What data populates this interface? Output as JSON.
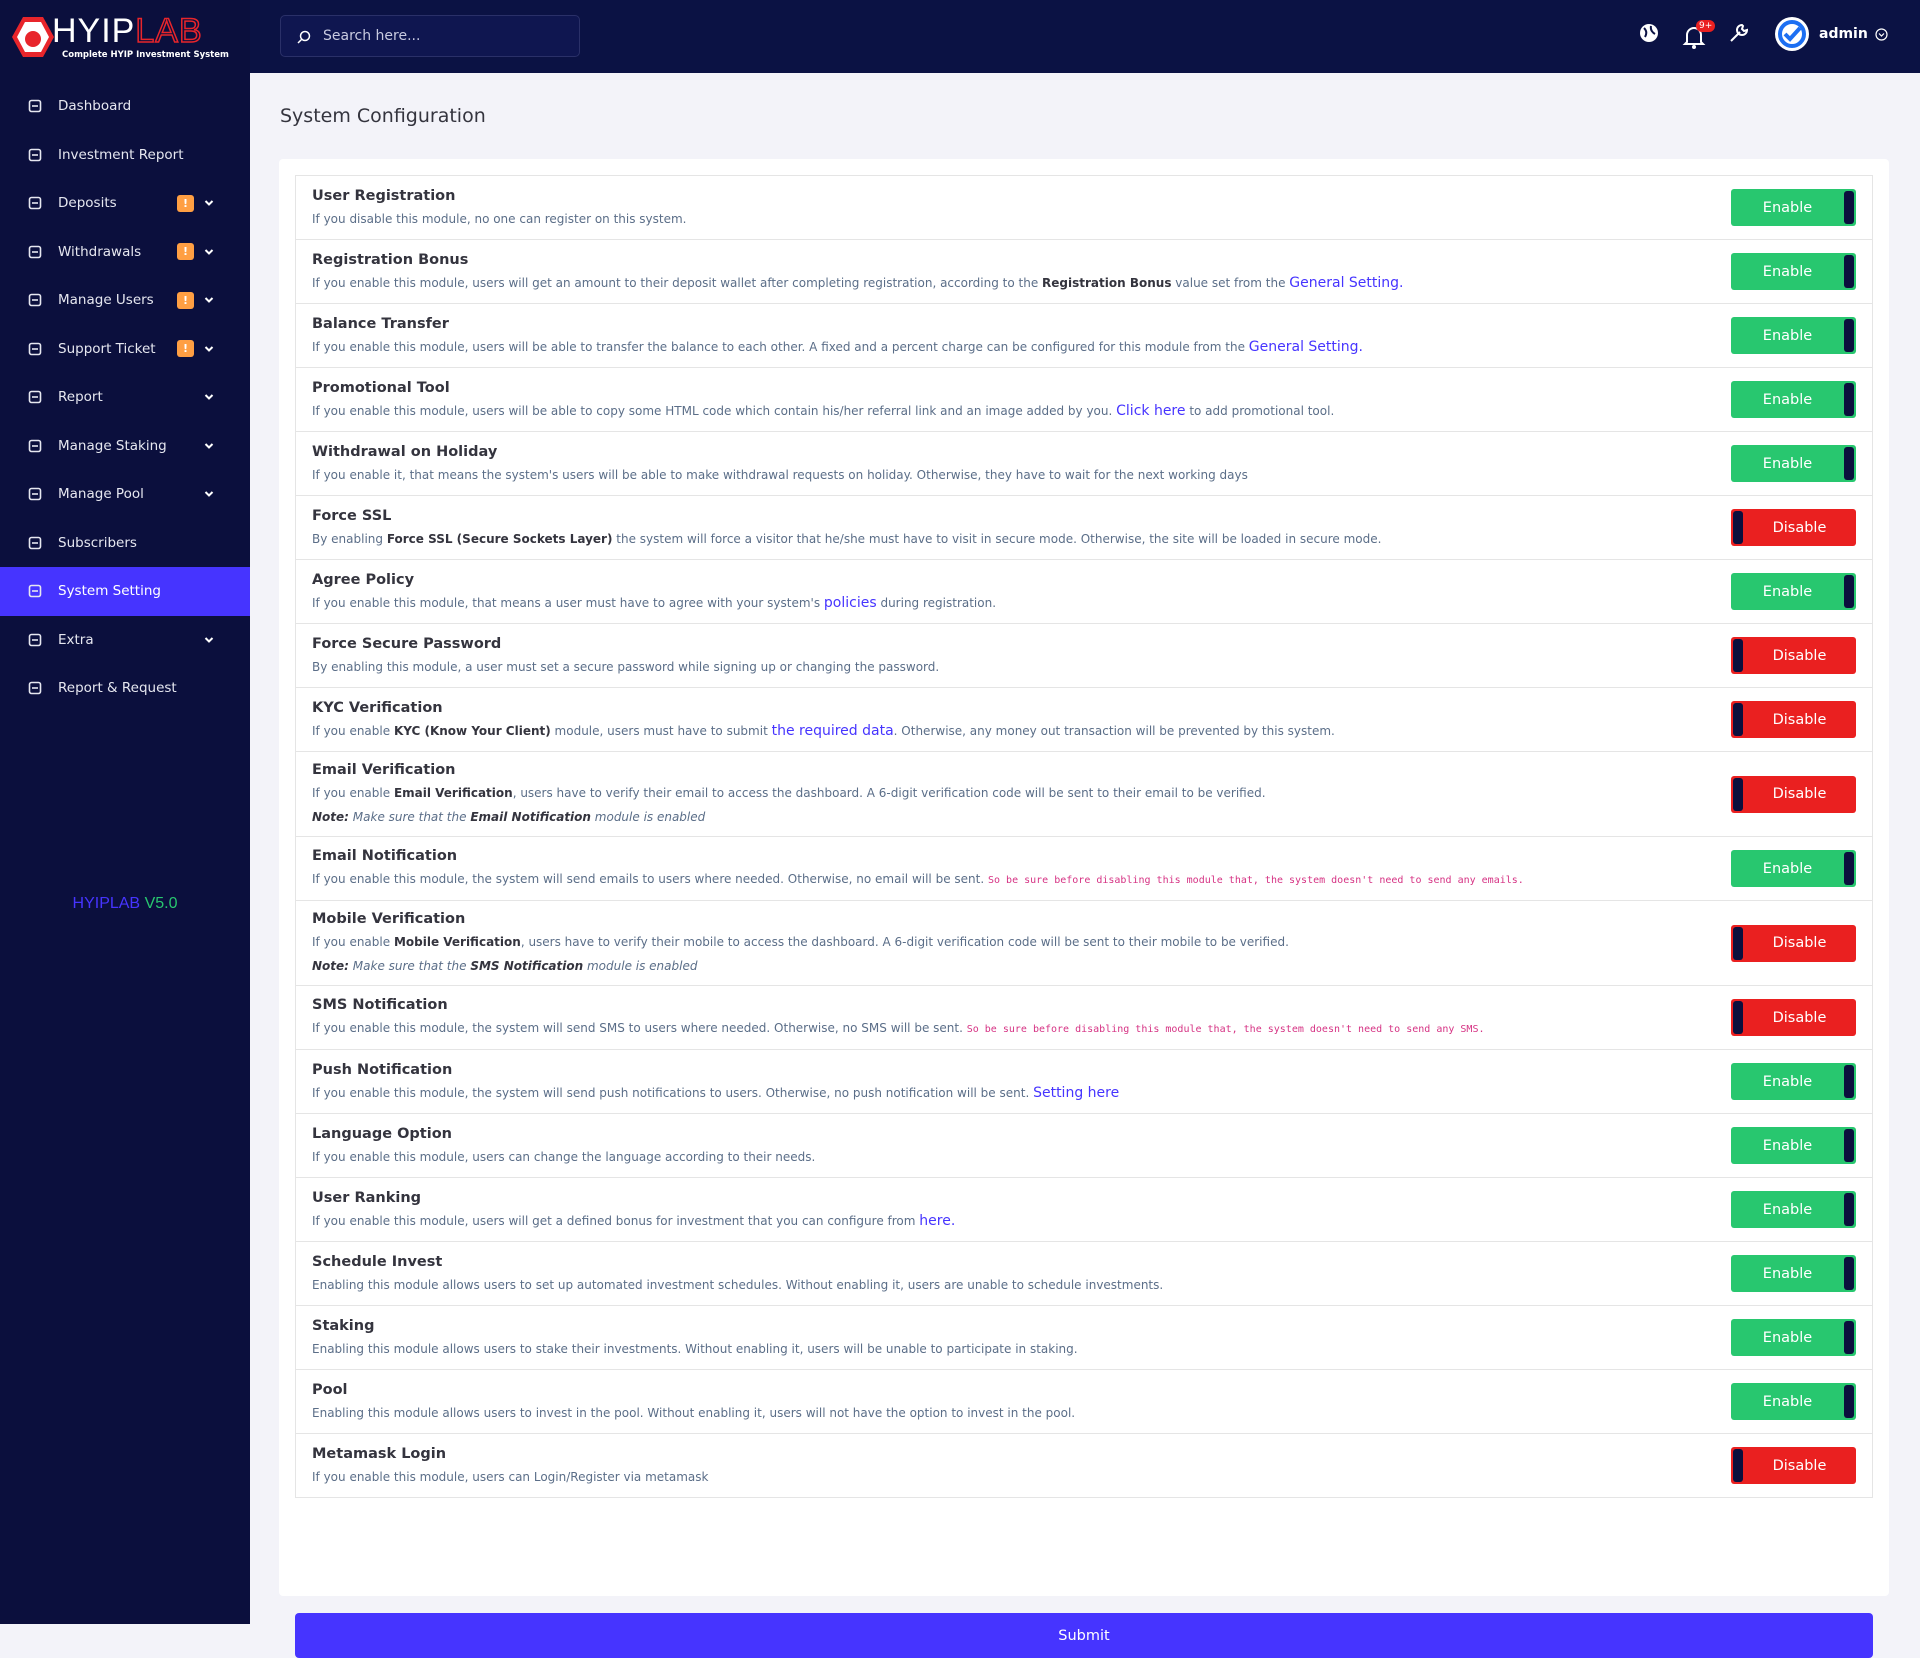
{
  "brand": {
    "name_a": "HYIP",
    "name_b": "LAB",
    "tagline": "Complete HYIP Investment System"
  },
  "search": {
    "placeholder": "Search here..."
  },
  "header": {
    "notification_badge": "9+",
    "user": "admin"
  },
  "menu": [
    {
      "label": "Dashboard"
    },
    {
      "label": "Investment Report"
    },
    {
      "label": "Deposits",
      "badge": "!",
      "dropdown": true
    },
    {
      "label": "Withdrawals",
      "badge": "!",
      "dropdown": true
    },
    {
      "label": "Manage Users",
      "badge": "!",
      "dropdown": true
    },
    {
      "label": "Support Ticket",
      "badge": "!",
      "dropdown": true
    },
    {
      "label": "Report",
      "dropdown": true
    },
    {
      "label": "Manage Staking",
      "dropdown": true
    },
    {
      "label": "Manage Pool",
      "dropdown": true
    },
    {
      "label": "Subscribers"
    },
    {
      "label": "System Setting",
      "active": true
    },
    {
      "label": "Extra",
      "dropdown": true
    },
    {
      "label": "Report & Request"
    }
  ],
  "version": {
    "name": "HYIPLAB",
    "number": "V5.0"
  },
  "page": {
    "title": "System Configuration",
    "submit": "Submit"
  },
  "rows": [
    {
      "title": "User Registration",
      "desc": [
        {
          "text": "If you disable this module, no one can register on this system."
        }
      ],
      "status": "Enable"
    },
    {
      "title": "Registration Bonus",
      "desc": [
        {
          "text": "If you enable this module, users will get an amount to their deposit wallet after completing registration, according to the "
        },
        {
          "text": "Registration Bonus",
          "style": "bold"
        },
        {
          "text": " value set from the "
        },
        {
          "text": "General Setting.",
          "style": "link"
        }
      ],
      "status": "Enable"
    },
    {
      "title": "Balance Transfer",
      "desc": [
        {
          "text": "If you enable this module, users will be able to transfer the balance to each other. A fixed and a percent charge can be configured for this module from the "
        },
        {
          "text": "General Setting.",
          "style": "link"
        }
      ],
      "status": "Enable"
    },
    {
      "title": "Promotional Tool",
      "desc": [
        {
          "text": "If you enable this module, users will be able to copy some HTML code which contain his/her referral link and an image added by you. "
        },
        {
          "text": "Click here",
          "style": "link"
        },
        {
          "text": " to add promotional tool."
        }
      ],
      "status": "Enable"
    },
    {
      "title": "Withdrawal on Holiday",
      "desc": [
        {
          "text": "If you enable it, that means the system's users will be able to make withdrawal requests on holiday. Otherwise, they have to wait for the next working days"
        }
      ],
      "status": "Enable"
    },
    {
      "title": "Force SSL",
      "desc": [
        {
          "text": "By enabling "
        },
        {
          "text": "Force SSL (Secure Sockets Layer)",
          "style": "bold"
        },
        {
          "text": " the system will force a visitor that he/she must have to visit in secure mode. Otherwise, the site will be loaded in secure mode."
        }
      ],
      "status": "Disable"
    },
    {
      "title": "Agree Policy",
      "desc": [
        {
          "text": "If you enable this module, that means a user must have to agree with your system's "
        },
        {
          "text": "policies",
          "style": "link"
        },
        {
          "text": " during registration."
        }
      ],
      "status": "Enable"
    },
    {
      "title": "Force Secure Password",
      "desc": [
        {
          "text": "By enabling this module, a user must set a secure password while signing up or changing the password."
        }
      ],
      "status": "Disable"
    },
    {
      "title": "KYC Verification",
      "desc": [
        {
          "text": "If you enable "
        },
        {
          "text": "KYC (Know Your Client)",
          "style": "bold"
        },
        {
          "text": " module, users must have to submit "
        },
        {
          "text": "the required data",
          "style": "link"
        },
        {
          "text": ". Otherwise, any money out transaction will be prevented by this system."
        }
      ],
      "status": "Disable"
    },
    {
      "title": "Email Verification",
      "desc": [
        {
          "text": "If you enable "
        },
        {
          "text": "Email Verification",
          "style": "bold"
        },
        {
          "text": ", users have to verify their email to access the dashboard. A 6-digit verification code will be sent to their email to be verified."
        }
      ],
      "note": [
        {
          "text": "Note:",
          "style": "bold"
        },
        {
          "text": " Make sure that the "
        },
        {
          "text": "Email Notification",
          "style": "bold"
        },
        {
          "text": " module is enabled"
        }
      ],
      "status": "Disable"
    },
    {
      "title": "Email Notification",
      "desc": [
        {
          "text": "If you enable this module, the system will send emails to users where needed. Otherwise, no email will be sent. "
        },
        {
          "text": "So be sure before disabling this module that, the system doesn't need to send any emails.",
          "style": "code"
        }
      ],
      "status": "Enable"
    },
    {
      "title": "Mobile Verification",
      "desc": [
        {
          "text": "If you enable "
        },
        {
          "text": "Mobile Verification",
          "style": "bold"
        },
        {
          "text": ", users have to verify their mobile to access the dashboard. A 6-digit verification code will be sent to their mobile to be verified."
        }
      ],
      "note": [
        {
          "text": "Note:",
          "style": "bold"
        },
        {
          "text": " Make sure that the "
        },
        {
          "text": "SMS Notification",
          "style": "bold"
        },
        {
          "text": " module is enabled"
        }
      ],
      "status": "Disable"
    },
    {
      "title": "SMS Notification",
      "desc": [
        {
          "text": "If you enable this module, the system will send SMS to users where needed. Otherwise, no SMS will be sent. "
        },
        {
          "text": "So be sure before disabling this module that, the system doesn't need to send any SMS.",
          "style": "code"
        }
      ],
      "status": "Disable"
    },
    {
      "title": "Push Notification",
      "desc": [
        {
          "text": "If you enable this module, the system will send push notifications to users. Otherwise, no push notification will be sent. "
        },
        {
          "text": "Setting here",
          "style": "link"
        }
      ],
      "status": "Enable"
    },
    {
      "title": "Language Option",
      "desc": [
        {
          "text": "If you enable this module, users can change the language according to their needs."
        }
      ],
      "status": "Enable"
    },
    {
      "title": "User Ranking",
      "desc": [
        {
          "text": "If you enable this module, users will get a defined bonus for investment that you can configure from "
        },
        {
          "text": "here.",
          "style": "link"
        }
      ],
      "status": "Enable"
    },
    {
      "title": "Schedule Invest",
      "desc": [
        {
          "text": "Enabling this module allows users to set up automated investment schedules. Without enabling it, users are unable to schedule investments."
        }
      ],
      "status": "Enable"
    },
    {
      "title": "Staking",
      "desc": [
        {
          "text": "Enabling this module allows users to stake their investments. Without enabling it, users will be unable to participate in staking."
        }
      ],
      "status": "Enable"
    },
    {
      "title": "Pool",
      "desc": [
        {
          "text": "Enabling this module allows users to invest in the pool. Without enabling it, users will not have the option to invest in the pool."
        }
      ],
      "status": "Enable"
    },
    {
      "title": "Metamask Login",
      "desc": [
        {
          "text": "If you enable this module, users can Login/Register via metamask"
        }
      ],
      "status": "Disable"
    }
  ]
}
